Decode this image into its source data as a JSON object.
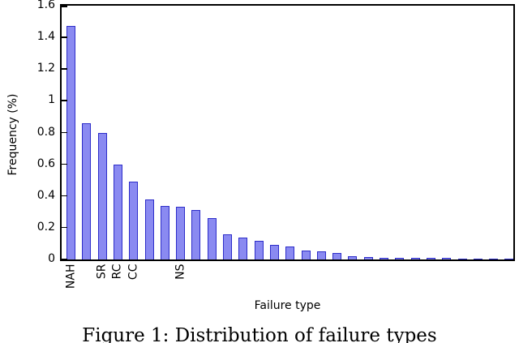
{
  "figure": {
    "caption": "Figure 1: Distribution of failure types"
  },
  "chart_data": {
    "type": "bar",
    "title": "Figure 1: Distribution of failure types",
    "xlabel": "Failure type",
    "ylabel": "Frequency (%)",
    "ylim": [
      0,
      1.6
    ],
    "yticks": [
      0,
      0.2,
      0.4,
      0.6,
      0.8,
      1,
      1.2,
      1.4,
      1.6
    ],
    "ytick_labels": [
      "0",
      "0.2",
      "0.4",
      "0.6",
      "0.8",
      "1",
      "1.2",
      "1.4",
      "1.6"
    ],
    "values": [
      1.47,
      0.86,
      0.8,
      0.6,
      0.49,
      0.38,
      0.34,
      0.33,
      0.31,
      0.26,
      0.16,
      0.14,
      0.12,
      0.09,
      0.08,
      0.055,
      0.05,
      0.04,
      0.02,
      0.015,
      0.01,
      0.01,
      0.01,
      0.008,
      0.008,
      0.006,
      0.006,
      0.005,
      0.005
    ],
    "bar_labels": [
      {
        "index": 0,
        "label": "NAH"
      },
      {
        "index": 2,
        "label": "SR"
      },
      {
        "index": 3,
        "label": "RC"
      },
      {
        "index": 4,
        "label": "CC"
      },
      {
        "index": 7,
        "label": "NS"
      }
    ],
    "grid": false,
    "legend": "none",
    "bar_fill": "#8a8af1",
    "bar_edge": "#2d2dc9",
    "axis_color": "#000000"
  }
}
